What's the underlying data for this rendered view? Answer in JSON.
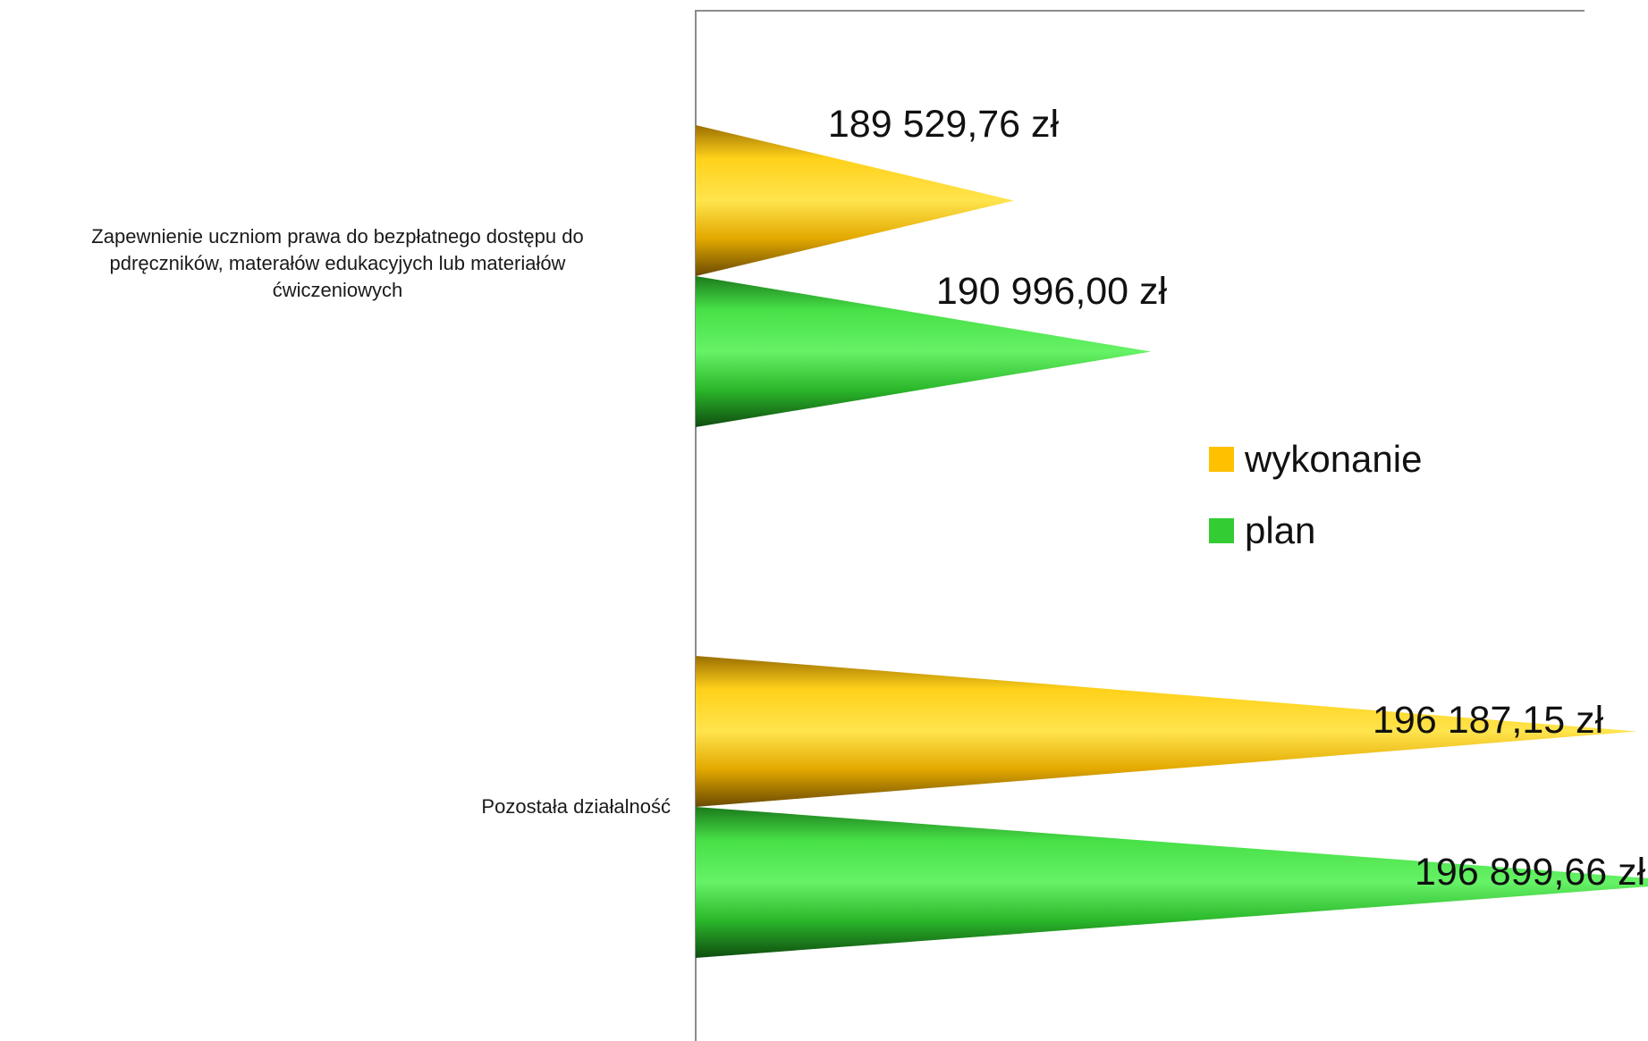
{
  "chart_data": {
    "type": "bar",
    "orientation": "horizontal",
    "bar_shape": "cone",
    "categories": [
      "Zapewnienie uczniom prawa do bezpłatnego dostępu do pdręczników, materałów edukacyjych lub materiałów ćwiczeniowych",
      "Pozostała działalność"
    ],
    "category_label_lines": [
      [
        "Zapewnienie uczniom prawa do bezpłatnego dostępu do",
        "pdręczników, materałów edukacyjych lub materiałów",
        "ćwiczeniowych"
      ],
      [
        "Pozostała działalność"
      ]
    ],
    "series": [
      {
        "name": "wykonanie",
        "color": "#FFC000",
        "values": [
          189529.76,
          196187.15
        ],
        "labels": [
          "189 529,76 zł",
          "196 187,15 zł"
        ]
      },
      {
        "name": "plan",
        "color": "#33CC33",
        "values": [
          190996.0,
          196899.66
        ],
        "labels": [
          "190 996,00 zł",
          "196 899,66 zł"
        ]
      }
    ],
    "x_axis_visible": false,
    "grid": false,
    "legend": {
      "position": "right",
      "entries": [
        "wykonanie",
        "plan"
      ]
    }
  }
}
